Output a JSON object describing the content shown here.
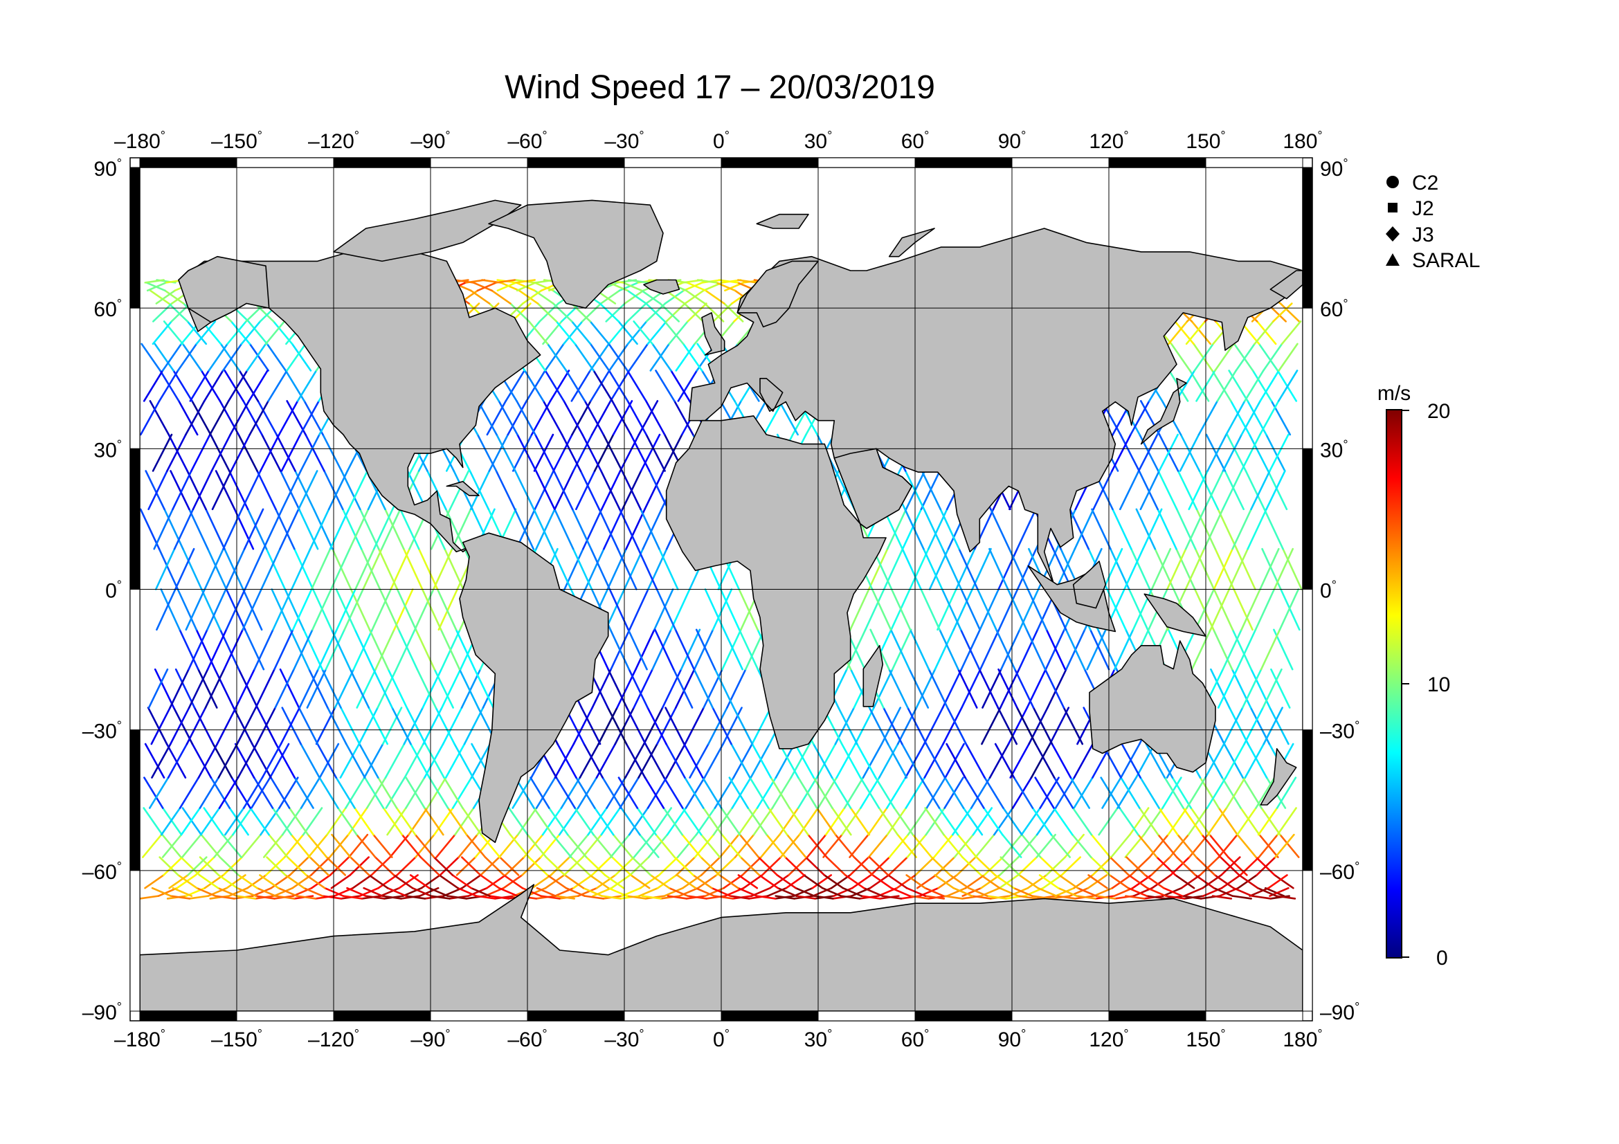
{
  "title": "Wind Speed 17 – 20/03/2019",
  "lon_ticks": [
    "–180",
    "–150",
    "–120",
    "–90",
    "–60",
    "–30",
    "0",
    "30",
    "60",
    "90",
    "120",
    "150",
    "180"
  ],
  "lat_ticks_left": [
    "90",
    "60",
    "30",
    "0",
    "–30",
    "–60",
    "–90"
  ],
  "lat_ticks_right": [
    "90",
    "60",
    "30",
    "0",
    "–30",
    "–60",
    "–90"
  ],
  "degree_symbol": "°",
  "legend": {
    "items": [
      {
        "label": "C2",
        "marker": "circle"
      },
      {
        "label": "J2",
        "marker": "square"
      },
      {
        "label": "J3",
        "marker": "diamond"
      },
      {
        "label": "SARAL",
        "marker": "triangle"
      }
    ]
  },
  "colorbar": {
    "unit": "m/s",
    "max_label": "20",
    "mid_label": "10",
    "min_label": "0",
    "min": 0,
    "max": 20,
    "colors": [
      "#00007f",
      "#0000ff",
      "#007fff",
      "#00ffff",
      "#7fff7f",
      "#ffff00",
      "#ff7f00",
      "#ff0000",
      "#7f0000"
    ]
  },
  "map": {
    "land_color": "#bebebe",
    "coast_color": "#000000",
    "ocean_color": "#ffffff"
  }
}
